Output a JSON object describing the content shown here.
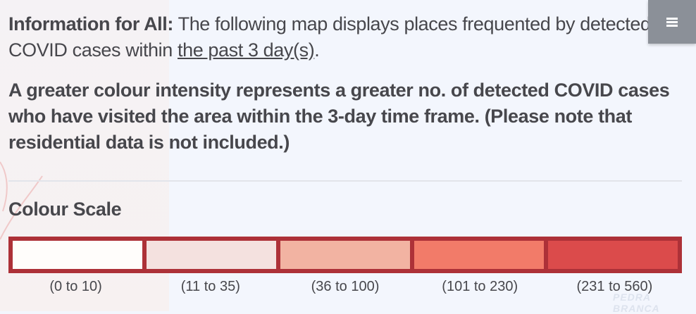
{
  "info": {
    "lead_bold": "Information for All:",
    "lead_text": " The following map displays places frequented by detected COVID cases within ",
    "link": "the past 3 day(s)",
    "lead_end": ".",
    "paragraph2": "A greater colour intensity represents a greater no. of detected COVID cases who have visited the area within the 3-day time frame. (Please note that residential data is not included.)"
  },
  "scale": {
    "title": "Colour Scale",
    "border_color": "#ad3138",
    "bins": [
      {
        "label": "(0 to 10)",
        "color": "#fffdfb"
      },
      {
        "label": "(11 to 35)",
        "color": "#f4e1df"
      },
      {
        "label": "(36 to 100)",
        "color": "#f2b3a2"
      },
      {
        "label": "(101 to 230)",
        "color": "#f27b69"
      },
      {
        "label": "(231 to 560)",
        "color": "#db4b4b"
      }
    ]
  },
  "menu": {
    "icon": "hamburger-icon"
  },
  "map": {
    "place_label": "PEDRA BRANCA"
  }
}
